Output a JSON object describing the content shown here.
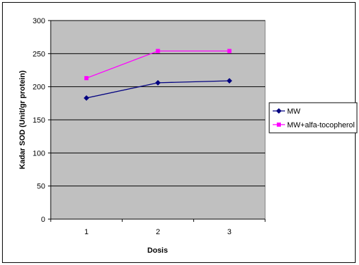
{
  "chart_data": {
    "type": "line",
    "title": "",
    "xlabel": "Dosis",
    "ylabel": "Kadar SOD (Unit/gr protein)",
    "categories": [
      "1",
      "2",
      "3"
    ],
    "ylim": [
      0,
      300
    ],
    "yticks": [
      0,
      50,
      100,
      150,
      200,
      250,
      300
    ],
    "grid": "horizontal",
    "plot_background": "#c0c0c0",
    "legend_position": "right",
    "series": [
      {
        "name": "MW",
        "values": [
          183,
          206,
          209
        ],
        "color": "#000080",
        "marker": "diamond"
      },
      {
        "name": "MW+alfa-tocopherol",
        "values": [
          213,
          254,
          254
        ],
        "color": "#ff00ff",
        "marker": "square"
      }
    ]
  }
}
